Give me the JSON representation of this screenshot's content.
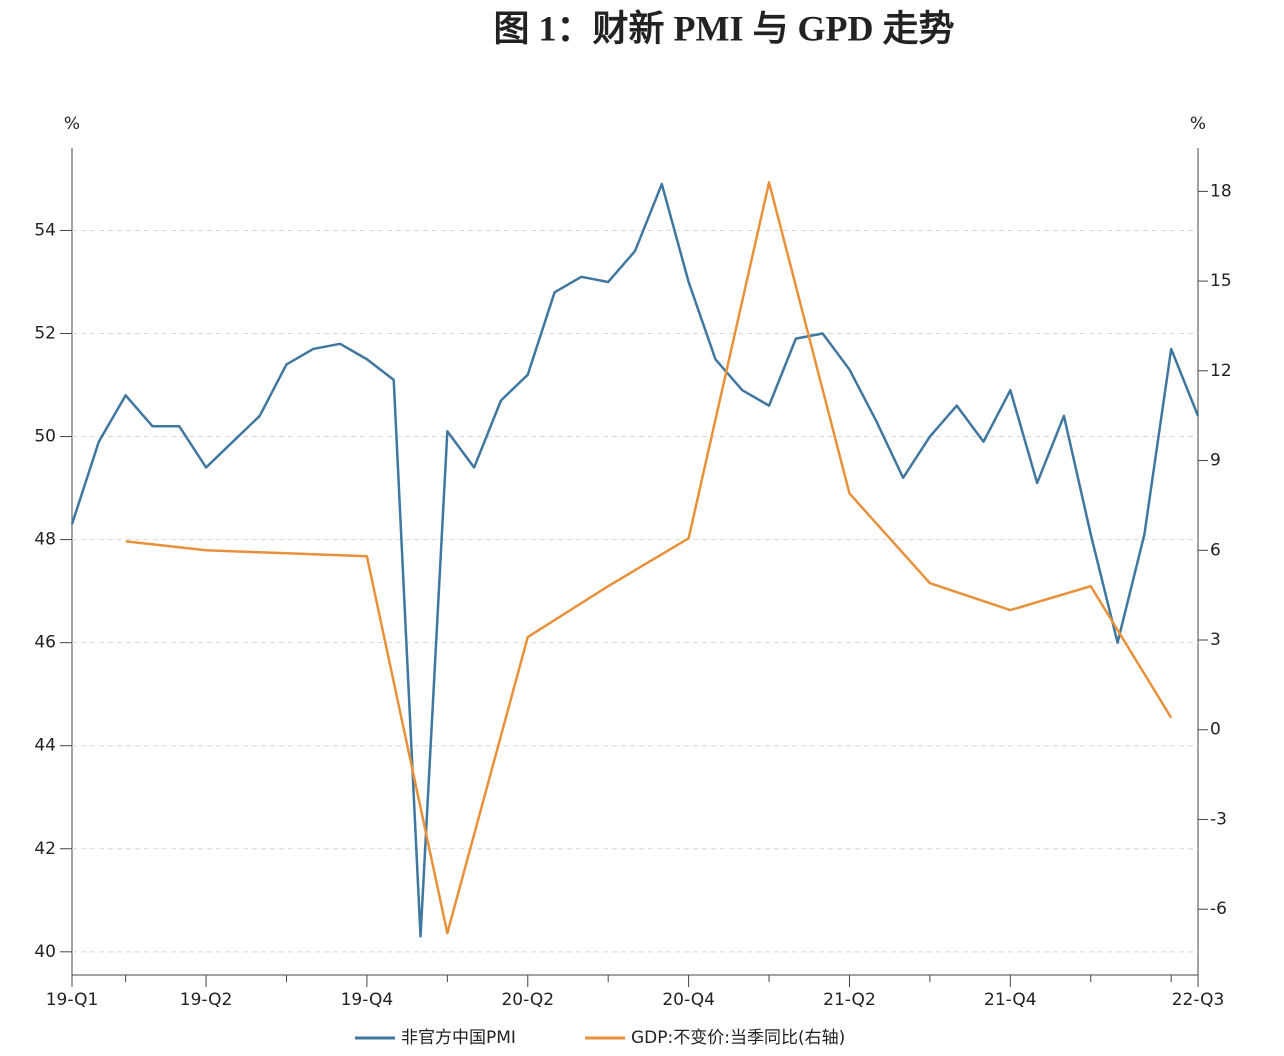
{
  "chart_data": {
    "type": "line",
    "title": "图 1：财新 PMI 与 GPD 走势",
    "y_unit": "%",
    "y2_unit": "%",
    "categories": [
      "19-Q1",
      null,
      null,
      null,
      null,
      "19-Q2",
      null,
      null,
      null,
      null,
      null,
      "19-Q4",
      null,
      null,
      null,
      null,
      null,
      "20-Q2",
      null,
      null,
      null,
      null,
      null,
      "20-Q4",
      null,
      null,
      null,
      null,
      null,
      "21-Q2",
      null,
      null,
      null,
      null,
      null,
      "21-Q4",
      null,
      null,
      null,
      null,
      null,
      null,
      "22-Q3"
    ],
    "ylim": [
      39.55,
      55.6
    ],
    "yticks": [
      40,
      42,
      44,
      46,
      48,
      50,
      52,
      54
    ],
    "y2lim": [
      -8.2,
      19.45
    ],
    "y2ticks": [
      -6,
      -3,
      0,
      3,
      6,
      9,
      12,
      15,
      18
    ],
    "grid": true,
    "legend": "bottom",
    "series": [
      {
        "name": "非官方中国PMI",
        "color": "#3f77a0",
        "values": [
          48.3,
          49.9,
          50.8,
          50.2,
          50.2,
          49.4,
          49.9,
          50.4,
          51.4,
          51.7,
          51.8,
          51.5,
          51.1,
          40.3,
          50.1,
          49.4,
          50.7,
          51.2,
          52.8,
          53.1,
          53.0,
          53.6,
          54.9,
          53.0,
          51.5,
          50.9,
          50.6,
          51.9,
          52.0,
          51.3,
          50.3,
          49.2,
          50.0,
          50.6,
          49.9,
          50.9,
          49.1,
          50.4,
          48.1,
          46.0,
          48.1,
          51.7,
          50.4
        ]
      },
      {
        "name": "GDP:不变价:当季同比(右轴)",
        "color": "#e8913a",
        "axis": "y2",
        "x": [
          2,
          5,
          8,
          11,
          14,
          17,
          20,
          23,
          26,
          29,
          32,
          35,
          38,
          41
        ],
        "values": [
          6.3,
          6.0,
          5.9,
          5.8,
          -6.8,
          3.1,
          4.8,
          6.4,
          18.3,
          7.9,
          4.9,
          4.0,
          4.8,
          0.4
        ]
      }
    ]
  }
}
